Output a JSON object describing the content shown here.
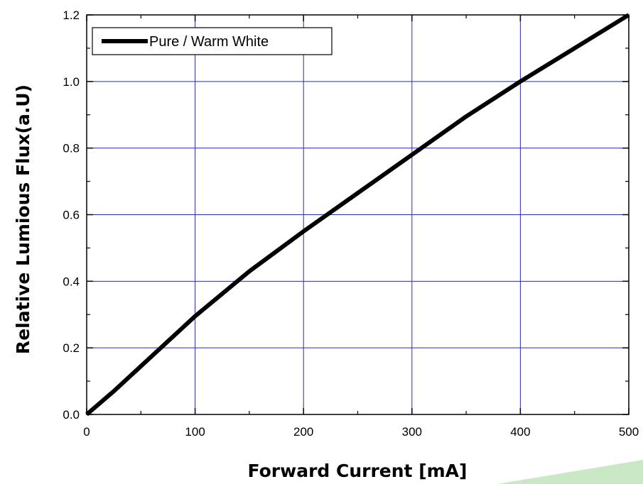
{
  "chart_data": {
    "type": "line",
    "xlabel": "Forward Current [mA]",
    "ylabel": "Relative Lumious Flux(a.U)",
    "xlim": [
      0,
      500
    ],
    "ylim": [
      0,
      1.2
    ],
    "x_ticks": [
      "0",
      "100",
      "200",
      "300",
      "400",
      "500"
    ],
    "y_ticks": [
      "0.0",
      "0.2",
      "0.4",
      "0.6",
      "0.8",
      "1.0",
      "1.2"
    ],
    "grid": true,
    "legend_position": "top-left",
    "series": [
      {
        "name": "Pure / Warm White",
        "color": "#000000",
        "x": [
          0,
          25,
          50,
          75,
          100,
          150,
          200,
          250,
          300,
          350,
          400,
          450,
          500
        ],
        "y": [
          0,
          0.07,
          0.145,
          0.22,
          0.295,
          0.43,
          0.55,
          0.665,
          0.78,
          0.895,
          1.0,
          1.1,
          1.2
        ]
      }
    ],
    "colors": {
      "grid": "#2b2bb8",
      "axis": "#000000",
      "accent_stripe": "#a9d9a3"
    }
  }
}
